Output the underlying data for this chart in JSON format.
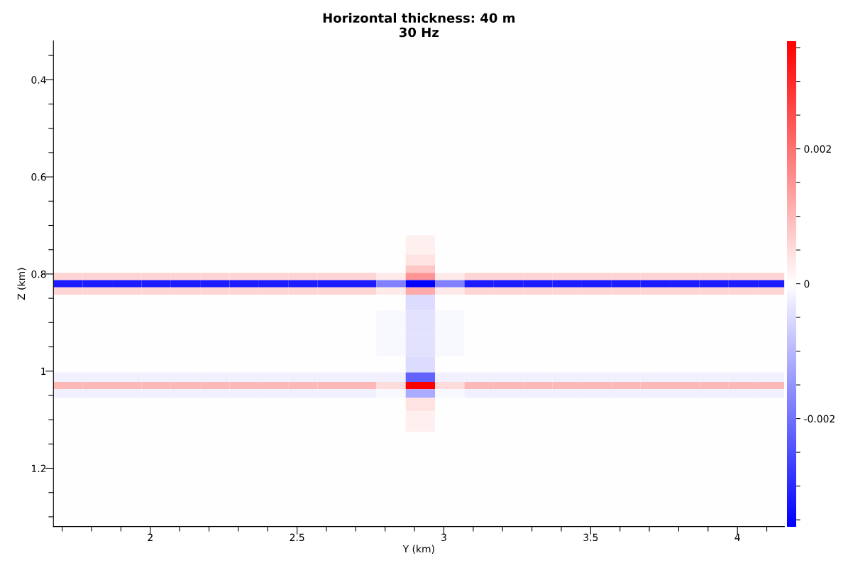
{
  "chart_data": {
    "type": "heatmap",
    "title": "Horizontal thickness: 40 m\n30 Hz",
    "xlabel": "Y (km)",
    "ylabel": "Z (km)",
    "x": [
      1.72,
      1.82,
      1.92,
      2.02,
      2.12,
      2.22,
      2.32,
      2.42,
      2.52,
      2.62,
      2.72,
      2.82,
      2.92,
      3.02,
      3.12,
      3.22,
      3.32,
      3.42,
      3.52,
      3.62,
      3.72,
      3.82,
      3.92,
      4.02,
      4.12
    ],
    "y": [
      0.345,
      0.395,
      0.445,
      0.495,
      0.545,
      0.595,
      0.645,
      0.695,
      0.745,
      0.775,
      0.79,
      0.805,
      0.82,
      0.835,
      0.85,
      0.9,
      0.95,
      0.99,
      1.015,
      1.03,
      1.045,
      1.065,
      1.1,
      1.15,
      1.2,
      1.25,
      1.3
    ],
    "cells": [
      [
        0,
        0,
        0,
        0,
        0,
        0,
        0,
        0,
        0,
        0,
        0,
        0,
        0,
        0,
        0,
        0,
        0,
        0,
        0,
        0,
        0,
        0,
        0,
        0,
        0
      ],
      [
        0,
        0,
        0,
        0,
        0,
        0,
        0,
        0,
        0,
        0,
        0,
        0,
        0,
        0,
        0,
        0,
        0,
        0,
        0,
        0,
        0,
        0,
        0,
        0,
        0
      ],
      [
        0,
        0,
        0,
        0,
        0,
        0,
        0,
        0,
        0,
        0,
        0,
        0,
        0,
        0,
        0,
        0,
        0,
        0,
        0,
        0,
        0,
        0,
        0,
        0,
        0
      ],
      [
        0,
        0,
        0,
        0,
        0,
        0,
        0,
        0,
        0,
        0,
        0,
        0,
        0,
        0,
        0,
        0,
        0,
        0,
        0,
        0,
        0,
        0,
        0,
        0,
        0
      ],
      [
        0,
        0,
        0,
        0,
        0,
        0,
        0,
        0,
        0,
        0,
        0,
        0,
        0,
        0,
        0,
        0,
        0,
        0,
        0,
        0,
        0,
        0,
        0,
        0,
        0
      ],
      [
        0,
        0,
        0,
        0,
        0,
        0,
        0,
        0,
        0,
        0,
        0,
        0,
        0,
        0,
        0,
        0,
        0,
        0,
        0,
        0,
        0,
        0,
        0,
        0,
        0
      ],
      [
        0,
        0,
        0,
        0,
        0,
        0,
        0,
        0,
        0,
        0,
        0,
        0,
        0,
        0,
        0,
        0,
        0,
        0,
        0,
        0,
        0,
        0,
        0,
        0,
        0
      ],
      [
        0,
        0,
        0,
        0,
        0,
        0,
        0,
        0,
        0,
        0,
        0,
        0,
        0,
        0,
        0,
        0,
        0,
        0,
        0,
        0,
        0,
        0,
        0,
        0,
        0
      ],
      [
        0,
        0,
        0,
        0,
        0,
        0,
        0,
        0,
        0,
        0,
        0,
        0,
        0.0002,
        0,
        0,
        0,
        0,
        0,
        0,
        0,
        0,
        0,
        0,
        0,
        0
      ],
      [
        0,
        0,
        0,
        0,
        0,
        0,
        0,
        0,
        0,
        0,
        0,
        0,
        0.0004,
        0,
        0,
        0,
        0,
        0,
        0,
        0,
        0,
        0,
        0,
        0,
        0
      ],
      [
        0,
        0,
        0,
        0,
        0,
        0,
        0,
        0,
        0,
        0,
        0,
        0,
        0.0008,
        0,
        0,
        0,
        0,
        0,
        0,
        0,
        0,
        0,
        0,
        0,
        0
      ],
      [
        0.0006,
        0.0006,
        0.0006,
        0.0006,
        0.0006,
        0.0006,
        0.0006,
        0.0006,
        0.0006,
        0.0006,
        0.0006,
        0.0003,
        0.0015,
        0.0003,
        0.0006,
        0.0006,
        0.0006,
        0.0006,
        0.0006,
        0.0006,
        0.0006,
        0.0006,
        0.0006,
        0.0006,
        0.0006
      ],
      [
        -0.0032,
        -0.0032,
        -0.0032,
        -0.0032,
        -0.0032,
        -0.0032,
        -0.0032,
        -0.0032,
        -0.0032,
        -0.0032,
        -0.0032,
        -0.0018,
        -0.0036,
        -0.0018,
        -0.0032,
        -0.0032,
        -0.0032,
        -0.0032,
        -0.0032,
        -0.0032,
        -0.0032,
        -0.0032,
        -0.0032,
        -0.0032,
        -0.0032
      ],
      [
        0.0006,
        0.0006,
        0.0006,
        0.0006,
        0.0006,
        0.0006,
        0.0006,
        0.0006,
        0.0006,
        0.0006,
        0.0006,
        0.0003,
        0.0012,
        0.0003,
        0.0006,
        0.0006,
        0.0006,
        0.0006,
        0.0006,
        0.0006,
        0.0006,
        0.0006,
        0.0006,
        0.0006,
        0.0006
      ],
      [
        0,
        0,
        0,
        0,
        0,
        0,
        0,
        0,
        0,
        0,
        0,
        0,
        -0.0005,
        0,
        0,
        0,
        0,
        0,
        0,
        0,
        0,
        0,
        0,
        0,
        0
      ],
      [
        0,
        0,
        0,
        0,
        0,
        0,
        0,
        0,
        0,
        0,
        0,
        -0.0001,
        -0.0004,
        -0.0001,
        0,
        0,
        0,
        0,
        0,
        0,
        0,
        0,
        0,
        0,
        0
      ],
      [
        0,
        0,
        0,
        0,
        0,
        0,
        0,
        0,
        0,
        0,
        0,
        -0.0001,
        -0.0004,
        -0.0001,
        0,
        0,
        0,
        0,
        0,
        0,
        0,
        0,
        0,
        0,
        0
      ],
      [
        0,
        0,
        0,
        0,
        0,
        0,
        0,
        0,
        0,
        0,
        0,
        0,
        -0.0005,
        0,
        0,
        0,
        0,
        0,
        0,
        0,
        0,
        0,
        0,
        0,
        0
      ],
      [
        -0.0002,
        -0.0002,
        -0.0002,
        -0.0002,
        -0.0002,
        -0.0002,
        -0.0002,
        -0.0002,
        -0.0002,
        -0.0002,
        -0.0002,
        -0.0002,
        -0.0022,
        -0.0002,
        -0.0002,
        -0.0002,
        -0.0002,
        -0.0002,
        -0.0002,
        -0.0002,
        -0.0002,
        -0.0002,
        -0.0002,
        -0.0002,
        -0.0002
      ],
      [
        0.001,
        0.001,
        0.001,
        0.001,
        0.001,
        0.001,
        0.001,
        0.001,
        0.001,
        0.001,
        0.001,
        0.0005,
        0.0036,
        0.0005,
        0.001,
        0.001,
        0.001,
        0.001,
        0.001,
        0.001,
        0.001,
        0.001,
        0.001,
        0.001,
        0.001
      ],
      [
        -0.0002,
        -0.0002,
        -0.0002,
        -0.0002,
        -0.0002,
        -0.0002,
        -0.0002,
        -0.0002,
        -0.0002,
        -0.0002,
        -0.0002,
        -0.0001,
        -0.0012,
        -0.0001,
        -0.0002,
        -0.0002,
        -0.0002,
        -0.0002,
        -0.0002,
        -0.0002,
        -0.0002,
        -0.0002,
        -0.0002,
        -0.0002,
        -0.0002
      ],
      [
        0,
        0,
        0,
        0,
        0,
        0,
        0,
        0,
        0,
        0,
        0,
        0,
        0.0004,
        0,
        0,
        0,
        0,
        0,
        0,
        0,
        0,
        0,
        0,
        0,
        0
      ],
      [
        0,
        0,
        0,
        0,
        0,
        0,
        0,
        0,
        0,
        0,
        0,
        0,
        0.0002,
        0,
        0,
        0,
        0,
        0,
        0,
        0,
        0,
        0,
        0,
        0,
        0
      ],
      [
        0,
        0,
        0,
        0,
        0,
        0,
        0,
        0,
        0,
        0,
        0,
        0,
        0,
        0,
        0,
        0,
        0,
        0,
        0,
        0,
        0,
        0,
        0,
        0,
        0
      ],
      [
        0,
        0,
        0,
        0,
        0,
        0,
        0,
        0,
        0,
        0,
        0,
        0,
        0,
        0,
        0,
        0,
        0,
        0,
        0,
        0,
        0,
        0,
        0,
        0,
        0
      ],
      [
        0,
        0,
        0,
        0,
        0,
        0,
        0,
        0,
        0,
        0,
        0,
        0,
        0,
        0,
        0,
        0,
        0,
        0,
        0,
        0,
        0,
        0,
        0,
        0,
        0
      ],
      [
        0,
        0,
        0,
        0,
        0,
        0,
        0,
        0,
        0,
        0,
        0,
        0,
        0,
        0,
        0,
        0,
        0,
        0,
        0,
        0,
        0,
        0,
        0,
        0,
        0
      ]
    ],
    "xlim": [
      1.67,
      4.16
    ],
    "ylim": [
      1.32,
      0.32
    ],
    "xticks": [
      {
        "value": 1.7,
        "label": null
      },
      {
        "value": 1.8,
        "label": null
      },
      {
        "value": 1.9,
        "label": null
      },
      2,
      {
        "value": 2.1,
        "label": null
      },
      {
        "value": 2.2,
        "label": null
      },
      {
        "value": 2.3,
        "label": null
      },
      {
        "value": 2.4,
        "label": null
      },
      2.5,
      {
        "value": 2.6,
        "label": null
      },
      {
        "value": 2.7,
        "label": null
      },
      {
        "value": 2.8,
        "label": null
      },
      {
        "value": 2.9,
        "label": null
      },
      3,
      {
        "value": 3.1,
        "label": null
      },
      {
        "value": 3.2,
        "label": null
      },
      {
        "value": 3.3,
        "label": null
      },
      {
        "value": 3.4,
        "label": null
      },
      3.5,
      {
        "value": 3.6,
        "label": null
      },
      {
        "value": 3.7,
        "label": null
      },
      {
        "value": 3.8,
        "label": null
      },
      {
        "value": 3.9,
        "label": null
      },
      4,
      {
        "value": 4.1,
        "label": null
      }
    ],
    "yticks": [
      {
        "value": 0.35,
        "label": null
      },
      0.4,
      {
        "value": 0.45,
        "label": null
      },
      {
        "value": 0.5,
        "label": null
      },
      {
        "value": 0.55,
        "label": null
      },
      0.6,
      {
        "value": 0.65,
        "label": null
      },
      {
        "value": 0.7,
        "label": null
      },
      {
        "value": 0.75,
        "label": null
      },
      0.8,
      {
        "value": 0.85,
        "label": null
      },
      {
        "value": 0.9,
        "label": null
      },
      {
        "value": 0.95,
        "label": null
      },
      1,
      {
        "value": 1.05,
        "label": null
      },
      {
        "value": 1.1,
        "label": null
      },
      {
        "value": 1.15,
        "label": null
      },
      1.2,
      {
        "value": 1.25,
        "label": null
      },
      {
        "value": 1.3,
        "label": null
      }
    ],
    "clim": [
      -0.0036,
      0.0036
    ],
    "cticks": [
      {
        "value": -0.0035,
        "label": null
      },
      {
        "value": -0.003,
        "label": null
      },
      {
        "value": -0.0025,
        "label": null
      },
      -0.002,
      {
        "value": -0.0015,
        "label": null
      },
      {
        "value": -0.001,
        "label": null
      },
      {
        "value": -0.0005,
        "label": null
      },
      0,
      {
        "value": 0.0005,
        "label": null
      },
      {
        "value": 0.001,
        "label": null
      },
      {
        "value": 0.0015,
        "label": null
      },
      0.002,
      {
        "value": 0.0025,
        "label": null
      },
      {
        "value": 0.003,
        "label": null
      },
      {
        "value": 0.0035,
        "label": null
      }
    ]
  }
}
